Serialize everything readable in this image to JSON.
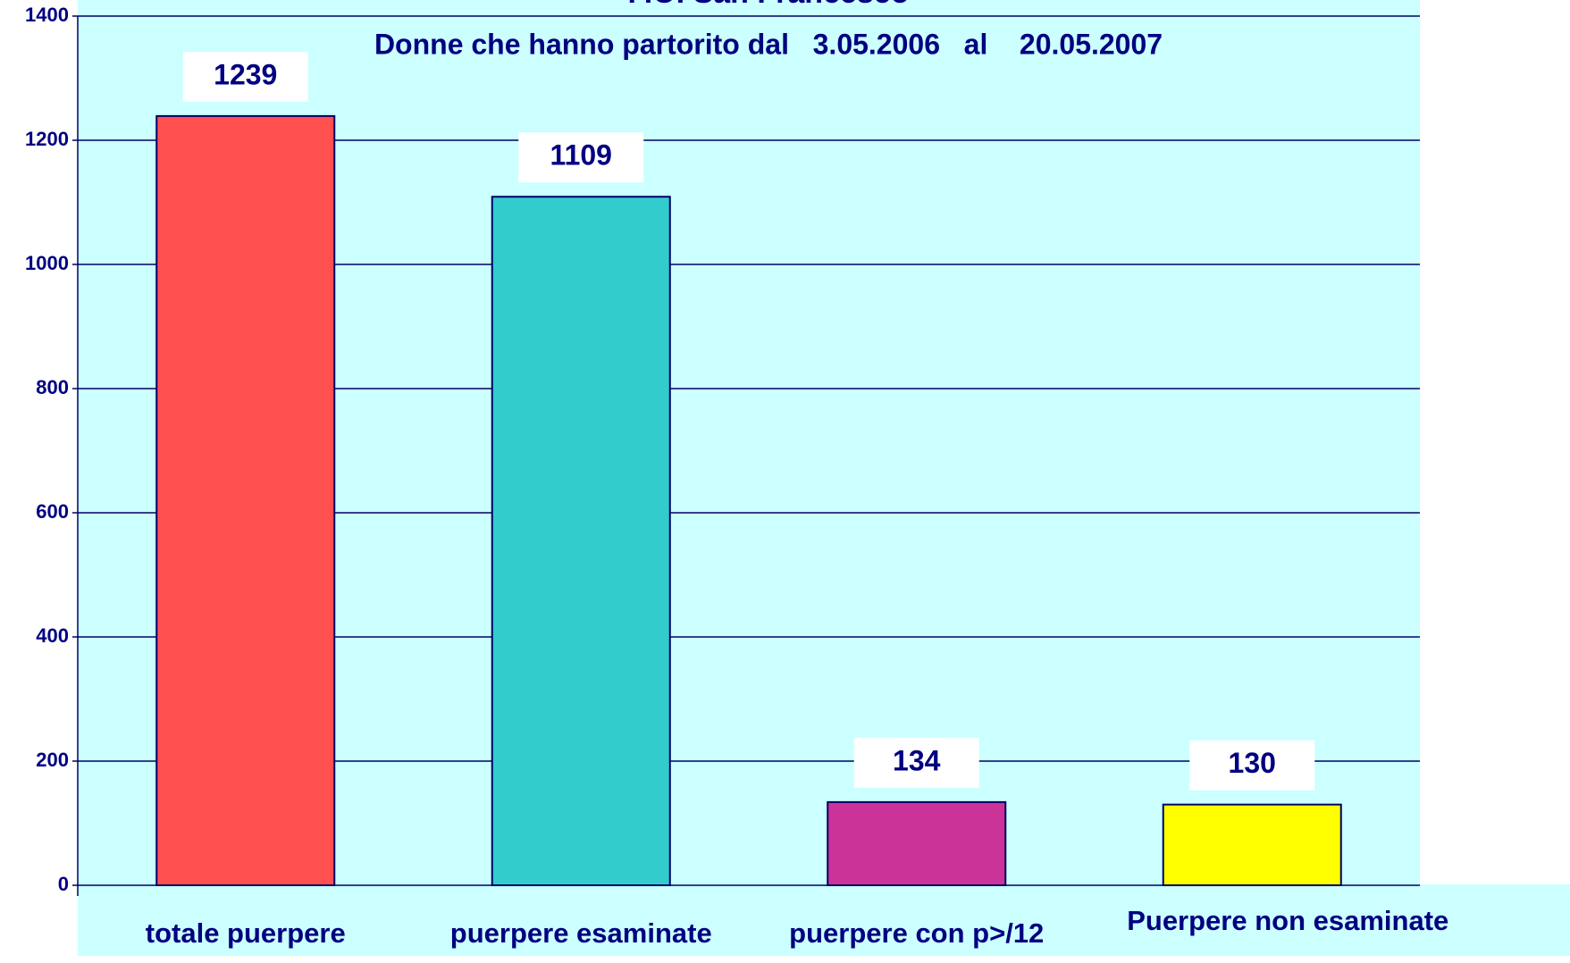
{
  "chart_data": {
    "type": "bar",
    "title": "P.O. San Francesco",
    "subtitle": "Donne che hanno partorito dal   3.05.2006   al    20.05.2007",
    "categories": [
      "totale puerpere",
      "puerpere esaminate",
      "puerpere con p>/12",
      "Puerpere non esaminate"
    ],
    "values": [
      1239,
      1109,
      134,
      130
    ],
    "colors": [
      "#ff5050",
      "#33cccc",
      "#cc3399",
      "#ffff00"
    ],
    "ylim": [
      0,
      1400
    ],
    "yticks": [
      0,
      200,
      400,
      600,
      800,
      1000,
      1200,
      1400
    ],
    "grid": true
  }
}
